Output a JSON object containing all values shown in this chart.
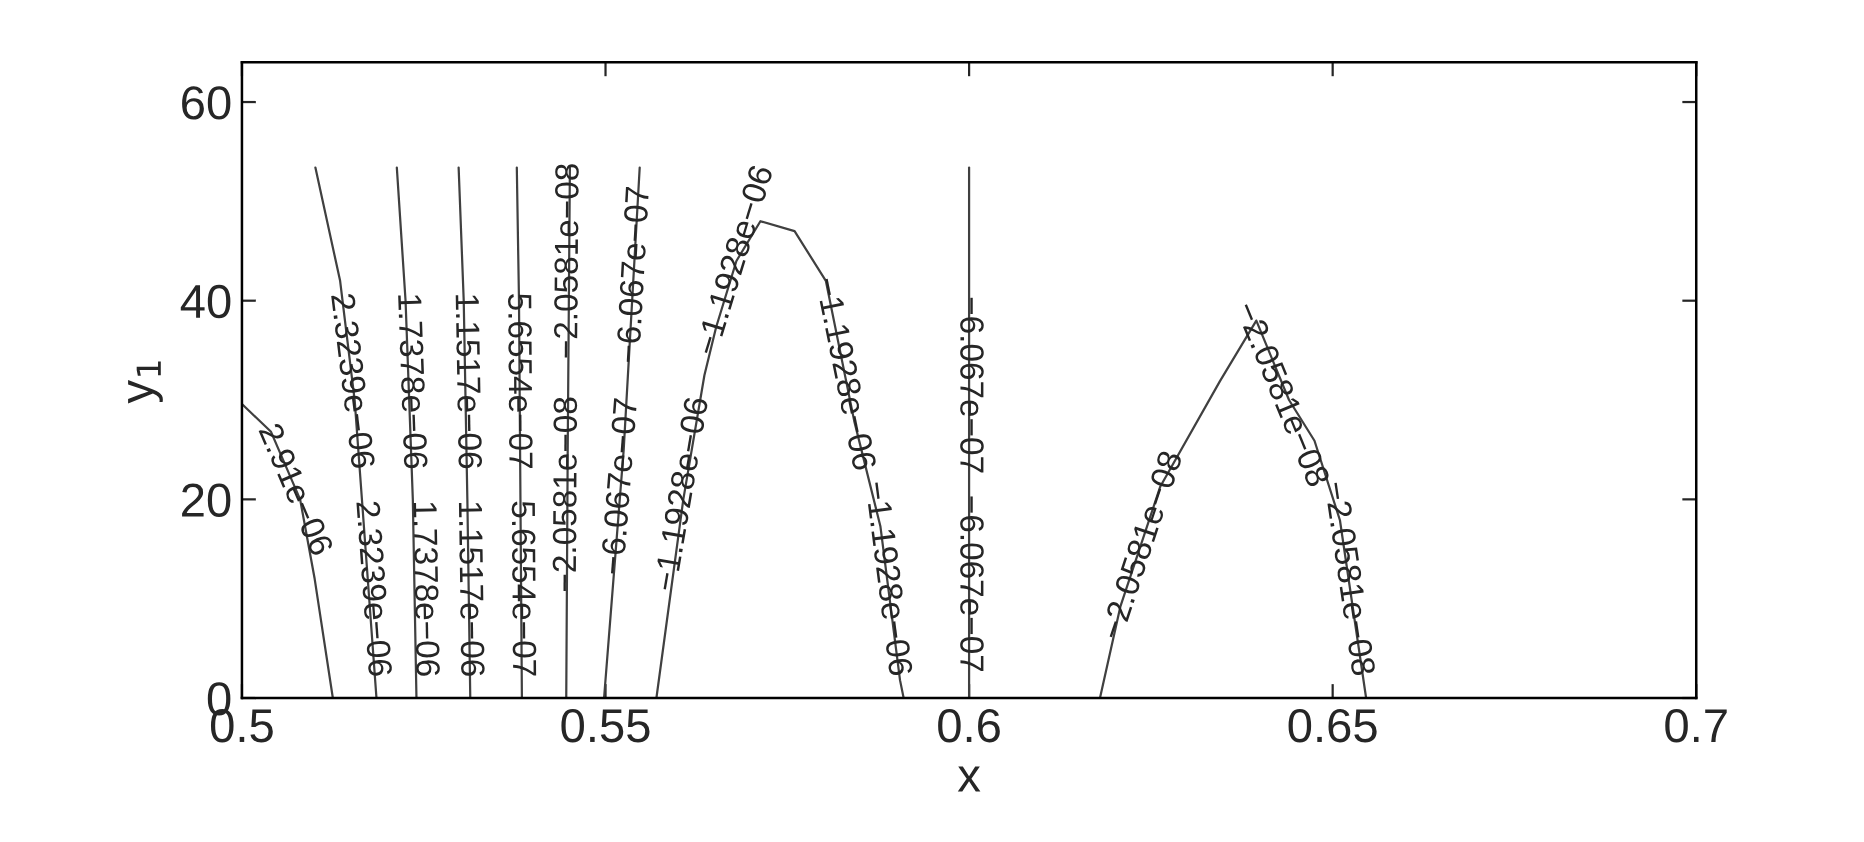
{
  "chart_data": {
    "type": "line",
    "xlabel": "x",
    "ylabel": "y$_{1}$",
    "xlim": [
      0.5,
      0.7
    ],
    "ylim": [
      0,
      64
    ],
    "xticks": [
      0.5,
      0.55,
      0.6,
      0.65,
      0.7
    ],
    "yticks": [
      0,
      20,
      40,
      60
    ],
    "grid": false,
    "legend": false,
    "marker": "none",
    "line_style": "solid",
    "series": [
      {
        "color": "#404040",
        "x": [
          0.5,
          0.504,
          0.508,
          0.51,
          0.5125
        ],
        "values": [
          29.6,
          26.8,
          20,
          12,
          0
        ]
      },
      {
        "color": "#404040",
        "x": [
          0.5101,
          0.5135,
          0.5155,
          0.517,
          0.5185
        ],
        "values": [
          53.4,
          42,
          30,
          15,
          0
        ]
      },
      {
        "color": "#404040",
        "x": [
          0.5213,
          0.5225,
          0.5235,
          0.524
        ],
        "values": [
          53.4,
          40,
          20,
          0
        ]
      },
      {
        "color": "#404040",
        "x": [
          0.5298,
          0.5305,
          0.531,
          0.5314
        ],
        "values": [
          53.4,
          40,
          20,
          0
        ]
      },
      {
        "color": "#404040",
        "x": [
          0.5378,
          0.5381,
          0.5383,
          0.5385
        ],
        "values": [
          53.4,
          40,
          20,
          0
        ]
      },
      {
        "color": "#404040",
        "x": [
          0.5446,
          0.5448,
          0.5451
        ],
        "values": [
          0,
          25,
          53.4
        ]
      },
      {
        "color": "#404040",
        "x": [
          0.5498,
          0.5525,
          0.5547
        ],
        "values": [
          0,
          25,
          53.4
        ]
      },
      {
        "color": "#404040",
        "x": [
          0.557,
          0.5607,
          0.5636,
          0.5652,
          0.568,
          0.5713,
          0.576,
          0.5803,
          0.5842,
          0.5878,
          0.5905,
          0.591
        ],
        "values": [
          0,
          20,
          32.5,
          37.3,
          44,
          48,
          47,
          42,
          27.9,
          17.3,
          1.8,
          0
        ]
      },
      {
        "color": "#404040",
        "x": [
          0.6,
          0.6,
          0.6
        ],
        "values": [
          0,
          25,
          53.4
        ]
      },
      {
        "color": "#404040",
        "x": [
          0.618,
          0.6208,
          0.6263,
          0.6345,
          0.6395,
          0.644,
          0.6475,
          0.651,
          0.6546
        ],
        "values": [
          0,
          9.2,
          21.3,
          31.9,
          38,
          30,
          25.9,
          17.9,
          0
        ]
      }
    ],
    "annotations": [
      {
        "text": "2.91e−06",
        "x": 0.5071,
        "y": 20.9
      },
      {
        "text": "2.3239e−06",
        "x": 0.5149,
        "y": 31.9
      },
      {
        "text": "2.3239e−06",
        "x": 0.5178,
        "y": 11
      },
      {
        "text": "1.7378e−06",
        "x": 0.5231,
        "y": 31.9
      },
      {
        "text": "1.7378e−06",
        "x": 0.525,
        "y": 11
      },
      {
        "text": "1.1517e−06",
        "x": 0.5308,
        "y": 31.9
      },
      {
        "text": "1.1517e−06",
        "x": 0.5312,
        "y": 11
      },
      {
        "text": "5.6554e−07",
        "x": 0.5379,
        "y": 31.9
      },
      {
        "text": "5.6554e−07",
        "x": 0.5384,
        "y": 11
      },
      {
        "text": "−2.0581e−08",
        "x": 0.5448,
        "y": 20.5
      },
      {
        "text": "−2.0581e−08",
        "x": 0.545,
        "y": 44
      },
      {
        "text": "−6.067e−07",
        "x": 0.5522,
        "y": 21.3
      },
      {
        "text": "−6.067e−07",
        "x": 0.5541,
        "y": 42.6
      },
      {
        "text": "−1.1928e−06",
        "x": 0.5607,
        "y": 20.5
      },
      {
        "text": "−1.1928e−06",
        "x": 0.568,
        "y": 44
      },
      {
        "text": "−1.1928e−06",
        "x": 0.5827,
        "y": 32.6
      },
      {
        "text": "−1.1928e−06",
        "x": 0.5886,
        "y": 12
      },
      {
        "text": "−6.067e−07",
        "x": 0.6,
        "y": 31.5
      },
      {
        "text": "−6.067e−07",
        "x": 0.6,
        "y": 11.5
      },
      {
        "text": "−2.0581e−08",
        "x": 0.624,
        "y": 15.3
      },
      {
        "text": "−2.0581e−08",
        "x": 0.6428,
        "y": 30.5
      },
      {
        "text": "−2.0581e−08",
        "x": 0.652,
        "y": 12
      }
    ]
  }
}
